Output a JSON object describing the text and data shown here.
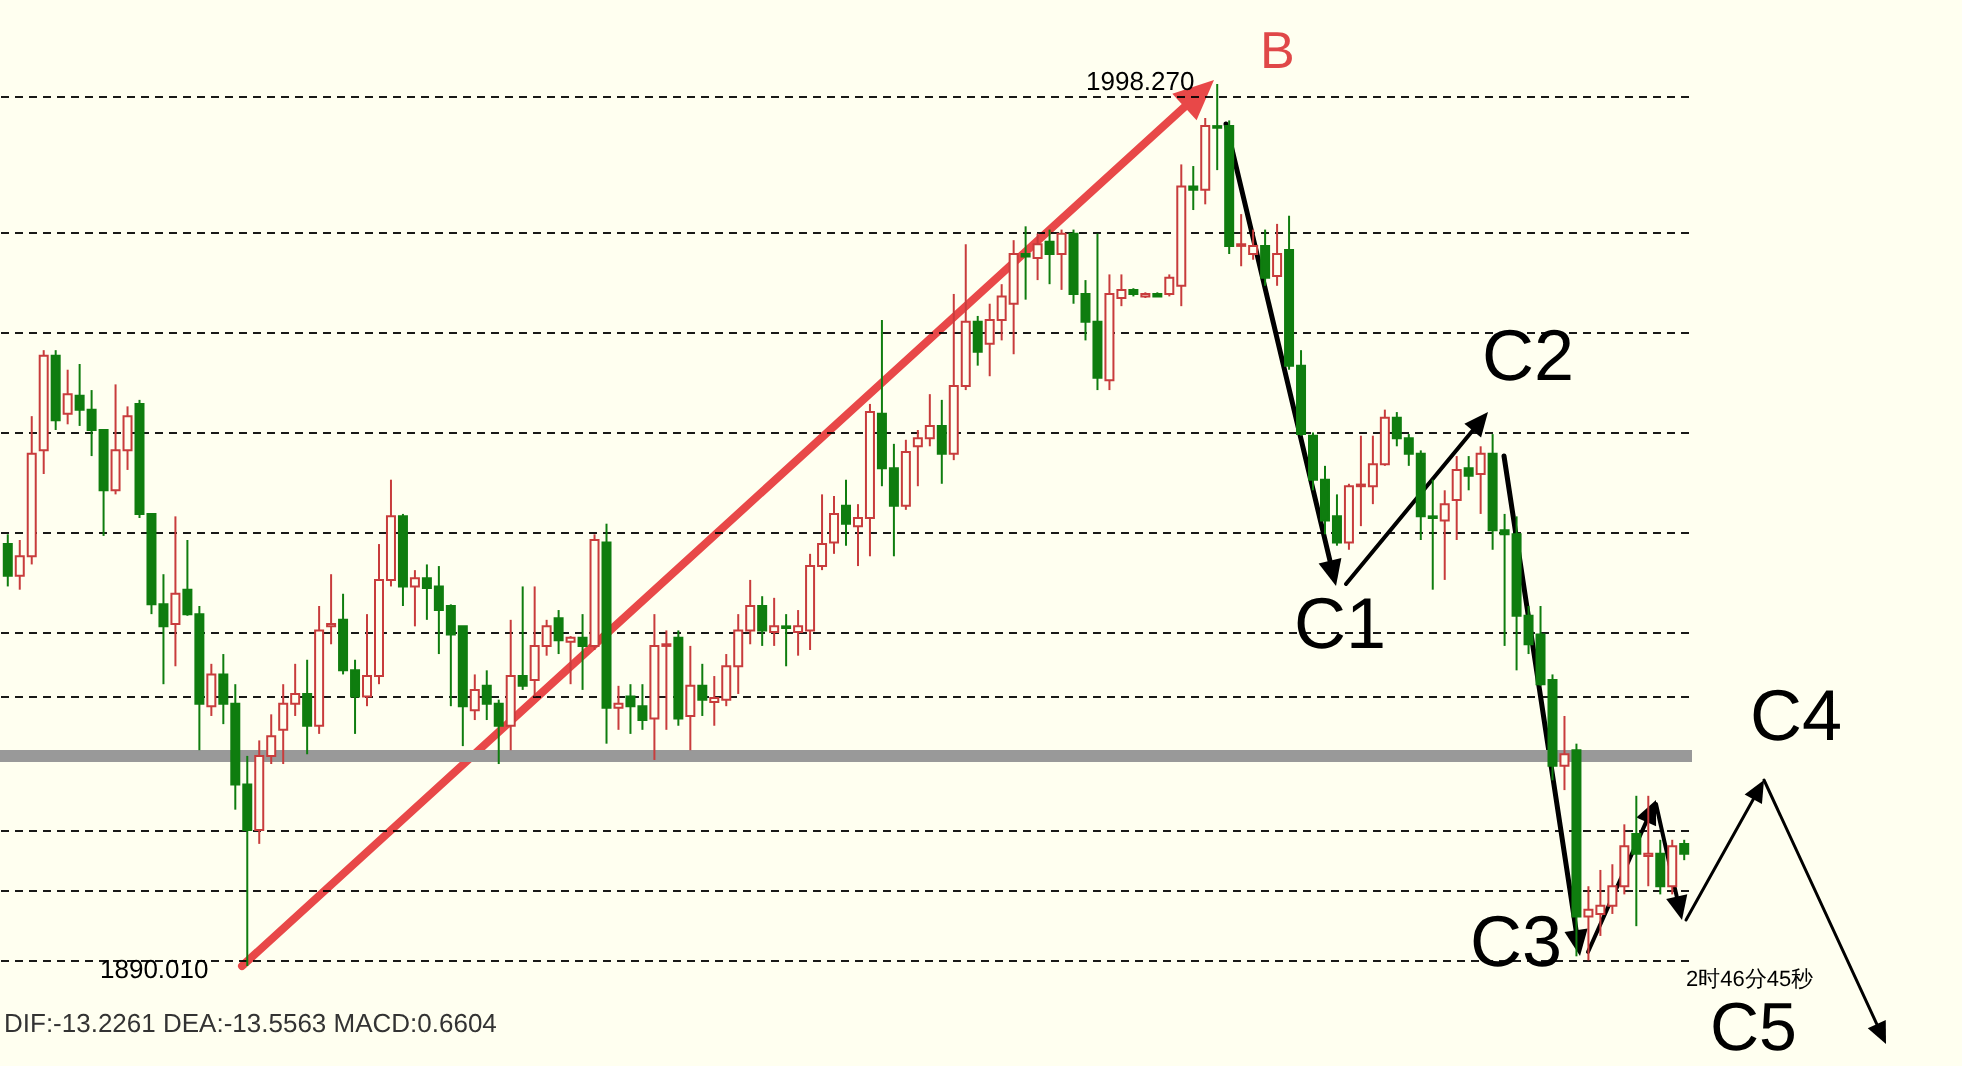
{
  "chart_data": {
    "type": "candlestick",
    "categories": [
      null,
      null,
      null,
      null,
      null,
      null,
      null,
      null,
      null,
      null,
      null,
      null,
      null,
      null,
      null,
      null,
      null,
      null,
      null,
      null,
      null,
      null,
      null,
      null,
      null,
      null,
      null,
      null,
      null,
      null,
      null,
      null,
      null,
      null,
      null,
      null,
      null,
      null,
      null,
      null,
      null,
      null,
      null,
      null,
      null,
      null,
      null,
      null,
      null,
      null,
      null,
      null,
      null,
      null,
      null,
      null,
      null,
      null,
      null,
      null,
      null,
      null,
      null,
      null,
      null,
      null,
      null,
      null,
      null,
      null,
      null,
      null,
      null,
      null,
      null,
      null,
      null,
      null,
      null,
      null,
      null,
      null,
      null,
      null,
      null,
      null,
      null,
      null,
      null,
      null,
      null,
      null,
      null,
      null,
      null,
      null,
      null,
      null,
      null,
      null,
      null,
      null,
      null,
      null,
      null,
      null,
      null,
      null,
      null,
      null,
      null,
      null,
      null,
      null,
      null,
      null,
      null,
      null,
      null,
      null,
      null,
      null,
      null,
      null,
      null,
      null,
      null,
      null,
      null,
      null,
      null,
      null,
      null,
      null,
      null,
      null,
      null,
      null,
      null,
      null,
      null
    ],
    "ohlc": [
      [
        1941.8,
        1943.0,
        1936.6,
        1937.9
      ],
      [
        1937.9,
        1942.3,
        1936.2,
        1940.3
      ],
      [
        1940.3,
        1957.5,
        1939.3,
        1952.9
      ],
      [
        1953.3,
        1965.6,
        1950.4,
        1964.9
      ],
      [
        1964.9,
        1965.6,
        1955.8,
        1957.0
      ],
      [
        1957.8,
        1963.2,
        1956.5,
        1960.2
      ],
      [
        1960.0,
        1963.9,
        1956.3,
        1958.3
      ],
      [
        1958.3,
        1960.7,
        1952.6,
        1955.8
      ],
      [
        1955.8,
        1955.8,
        1942.8,
        1948.4
      ],
      [
        1948.4,
        1961.4,
        1947.9,
        1953.3
      ],
      [
        1953.3,
        1958.7,
        1950.9,
        1957.5
      ],
      [
        1959.0,
        1959.5,
        1945.0,
        1945.5
      ],
      [
        1945.5,
        1945.5,
        1933.2,
        1934.4
      ],
      [
        1934.4,
        1938.1,
        1924.6,
        1931.7
      ],
      [
        1932.0,
        1945.2,
        1926.8,
        1935.7
      ],
      [
        1936.2,
        1942.3,
        1933.0,
        1933.2
      ],
      [
        1933.2,
        1934.2,
        1916.5,
        1922.2
      ],
      [
        1921.9,
        1927.1,
        1920.7,
        1925.8
      ],
      [
        1925.8,
        1928.3,
        1919.7,
        1922.2
      ],
      [
        1922.2,
        1924.6,
        1909.2,
        1912.3
      ],
      [
        1912.3,
        1915.8,
        1890.01,
        1906.7
      ],
      [
        1906.7,
        1917.7,
        1905.0,
        1915.8
      ],
      [
        1915.8,
        1920.9,
        1914.8,
        1918.2
      ],
      [
        1919.0,
        1924.6,
        1914.8,
        1922.2
      ],
      [
        1922.2,
        1927.1,
        1920.7,
        1923.4
      ],
      [
        1923.4,
        1927.6,
        1916.0,
        1919.5
      ],
      [
        1919.5,
        1934.2,
        1918.5,
        1931.2
      ],
      [
        1931.7,
        1938.1,
        1929.5,
        1932.0
      ],
      [
        1932.5,
        1935.7,
        1925.8,
        1926.3
      ],
      [
        1926.3,
        1927.6,
        1918.5,
        1923.1
      ],
      [
        1923.1,
        1933.2,
        1921.9,
        1925.6
      ],
      [
        1925.6,
        1941.8,
        1924.6,
        1937.4
      ],
      [
        1937.4,
        1949.7,
        1936.6,
        1945.2
      ],
      [
        1945.2,
        1945.5,
        1934.2,
        1936.6
      ],
      [
        1936.6,
        1938.6,
        1931.7,
        1937.6
      ],
      [
        1937.6,
        1939.3,
        1932.5,
        1936.4
      ],
      [
        1936.6,
        1939.1,
        1928.3,
        1933.7
      ],
      [
        1934.2,
        1934.4,
        1921.9,
        1930.7
      ],
      [
        1931.7,
        1931.7,
        1917.0,
        1921.9
      ],
      [
        1921.4,
        1925.8,
        1920.2,
        1923.9
      ],
      [
        1924.4,
        1926.3,
        1920.2,
        1922.2
      ],
      [
        1922.2,
        1922.7,
        1914.8,
        1919.5
      ],
      [
        1919.5,
        1932.5,
        1916.5,
        1925.6
      ],
      [
        1925.6,
        1936.6,
        1923.9,
        1924.4
      ],
      [
        1925.1,
        1936.6,
        1923.1,
        1929.3
      ],
      [
        1929.3,
        1932.5,
        1928.1,
        1931.7
      ],
      [
        1932.7,
        1933.7,
        1928.3,
        1930.0
      ],
      [
        1929.8,
        1930.5,
        1924.6,
        1930.3
      ],
      [
        1930.3,
        1933.2,
        1923.9,
        1929.3
      ],
      [
        1929.3,
        1943.0,
        1928.8,
        1942.3
      ],
      [
        1942.0,
        1944.3,
        1917.3,
        1921.7
      ],
      [
        1921.7,
        1924.4,
        1919.0,
        1922.2
      ],
      [
        1923.1,
        1924.6,
        1918.5,
        1921.9
      ],
      [
        1921.9,
        1924.6,
        1919.0,
        1920.2
      ],
      [
        1920.4,
        1933.2,
        1915.3,
        1929.3
      ],
      [
        1929.3,
        1931.2,
        1919.0,
        1929.5
      ],
      [
        1930.3,
        1931.2,
        1919.5,
        1920.4
      ],
      [
        1920.7,
        1929.3,
        1916.5,
        1924.4
      ],
      [
        1924.4,
        1927.1,
        1920.7,
        1922.7
      ],
      [
        1922.4,
        1925.6,
        1919.5,
        1922.9
      ],
      [
        1922.7,
        1928.3,
        1921.9,
        1926.8
      ],
      [
        1926.8,
        1933.2,
        1923.4,
        1931.2
      ],
      [
        1931.2,
        1937.4,
        1929.5,
        1934.2
      ],
      [
        1934.2,
        1935.4,
        1929.3,
        1931.2
      ],
      [
        1931.0,
        1935.2,
        1929.3,
        1931.7
      ],
      [
        1931.7,
        1933.2,
        1926.8,
        1931.5
      ],
      [
        1931.0,
        1933.7,
        1928.1,
        1931.7
      ],
      [
        1931.2,
        1940.6,
        1928.8,
        1939.1
      ],
      [
        1939.1,
        1947.9,
        1938.6,
        1941.8
      ],
      [
        1942.0,
        1947.7,
        1940.6,
        1945.5
      ],
      [
        1946.5,
        1949.7,
        1941.6,
        1944.3
      ],
      [
        1944.0,
        1946.7,
        1939.1,
        1945.0
      ],
      [
        1945.0,
        1959.0,
        1940.3,
        1958.0
      ],
      [
        1957.8,
        1969.3,
        1948.9,
        1951.1
      ],
      [
        1951.1,
        1954.1,
        1940.3,
        1946.5
      ],
      [
        1946.5,
        1954.6,
        1946.0,
        1953.1
      ],
      [
        1953.8,
        1955.8,
        1948.9,
        1954.8
      ],
      [
        1954.8,
        1960.2,
        1953.8,
        1956.3
      ],
      [
        1956.3,
        1959.5,
        1949.2,
        1952.9
      ],
      [
        1952.9,
        1972.5,
        1952.1,
        1961.2
      ],
      [
        1961.2,
        1978.6,
        1960.7,
        1969.1
      ],
      [
        1969.1,
        1969.8,
        1963.7,
        1965.4
      ],
      [
        1966.4,
        1971.3,
        1962.4,
        1969.3
      ],
      [
        1969.3,
        1973.7,
        1966.8,
        1972.2
      ],
      [
        1971.3,
        1979.1,
        1965.1,
        1977.4
      ],
      [
        1977.4,
        1980.8,
        1971.8,
        1977.1
      ],
      [
        1976.9,
        1979.9,
        1974.2,
        1978.6
      ],
      [
        1978.9,
        1980.4,
        1973.7,
        1977.4
      ],
      [
        1977.4,
        1980.4,
        1973.0,
        1979.9
      ],
      [
        1979.9,
        1980.4,
        1971.3,
        1972.5
      ],
      [
        1972.5,
        1974.2,
        1966.8,
        1969.1
      ],
      [
        1969.1,
        1979.9,
        1960.7,
        1962.2
      ],
      [
        1961.9,
        1974.9,
        1960.7,
        1972.5
      ],
      [
        1972.0,
        1974.9,
        1971.0,
        1973.0
      ],
      [
        1973.0,
        1973.2,
        1972.2,
        1972.5
      ],
      [
        1972.2,
        1972.7,
        1972.0,
        1972.5
      ],
      [
        1972.5,
        1972.7,
        1972.2,
        1972.2
      ],
      [
        1972.5,
        1974.9,
        1972.2,
        1974.5
      ],
      [
        1973.5,
        1988.4,
        1971.0,
        1985.7
      ],
      [
        1985.7,
        1988.2,
        1982.8,
        1985.3
      ],
      [
        1985.3,
        1994.1,
        1983.5,
        1993.1
      ],
      [
        1993.1,
        1998.27,
        1987.7,
        1992.9
      ],
      [
        1993.1,
        1993.8,
        1977.4,
        1978.4
      ],
      [
        1978.4,
        1982.3,
        1975.9,
        1978.6
      ],
      [
        1977.4,
        1980.4,
        1976.7,
        1978.4
      ],
      [
        1978.4,
        1980.4,
        1973.5,
        1974.5
      ],
      [
        1974.7,
        1981.1,
        1973.5,
        1977.4
      ],
      [
        1977.9,
        1982.1,
        1963.2,
        1963.7
      ],
      [
        1963.7,
        1965.6,
        1955.1,
        1955.3
      ],
      [
        1955.1,
        1955.5,
        1948.4,
        1949.7
      ],
      [
        1949.7,
        1951.4,
        1943.0,
        1944.7
      ],
      [
        1945.2,
        1947.9,
        1941.6,
        1942.0
      ],
      [
        1942.0,
        1949.2,
        1941.1,
        1948.9
      ],
      [
        1948.9,
        1955.1,
        1944.0,
        1949.1
      ],
      [
        1948.9,
        1955.1,
        1946.7,
        1951.6
      ],
      [
        1951.6,
        1958.3,
        1951.4,
        1957.3
      ],
      [
        1957.3,
        1958.0,
        1953.8,
        1954.8
      ],
      [
        1954.8,
        1955.3,
        1951.4,
        1952.9
      ],
      [
        1952.9,
        1953.3,
        1942.3,
        1945.2
      ],
      [
        1945.2,
        1949.7,
        1936.2,
        1945.0
      ],
      [
        1944.7,
        1948.4,
        1937.4,
        1946.7
      ],
      [
        1947.2,
        1952.6,
        1942.3,
        1950.9
      ],
      [
        1951.1,
        1952.6,
        1948.4,
        1950.2
      ],
      [
        1950.4,
        1953.8,
        1945.5,
        1952.9
      ],
      [
        1952.9,
        1955.3,
        1941.1,
        1943.5
      ],
      [
        1943.5,
        1945.5,
        1929.3,
        1943.0
      ],
      [
        1943.0,
        1945.2,
        1926.3,
        1933.0
      ],
      [
        1933.0,
        1934.2,
        1928.3,
        1929.5
      ],
      [
        1930.7,
        1934.2,
        1924.4,
        1924.6
      ],
      [
        1925.1,
        1925.8,
        1912.8,
        1914.6
      ],
      [
        1914.6,
        1920.7,
        1911.6,
        1916.0
      ],
      [
        1916.5,
        1917.3,
        1891.2,
        1896.1
      ],
      [
        1896.1,
        1899.8,
        1890.7,
        1896.9
      ],
      [
        1896.4,
        1901.8,
        1893.7,
        1897.4
      ],
      [
        1897.4,
        1902.5,
        1896.4,
        1899.8
      ],
      [
        1899.8,
        1907.4,
        1898.8,
        1904.7
      ],
      [
        1906.2,
        1910.9,
        1894.9,
        1903.8
      ],
      [
        1903.5,
        1910.9,
        1899.8,
        1903.8
      ],
      [
        1903.8,
        1905.5,
        1898.8,
        1899.8
      ],
      [
        1899.8,
        1905.5,
        1898.8,
        1904.7
      ],
      [
        1905.0,
        1905.5,
        1903.0,
        1903.8
      ]
    ],
    "yticks": [
      {
        "value": 1996.8,
        "label": null
      },
      {
        "value": 1980.1,
        "label": null
      },
      {
        "value": 1967.8,
        "label": null
      },
      {
        "value": 1955.5,
        "label": null
      },
      {
        "value": 1943.3,
        "label": null
      },
      {
        "value": 1931.0,
        "label": null
      },
      {
        "value": 1923.1,
        "label": null
      },
      {
        "value": 1906.7,
        "label": null
      },
      {
        "value": 1899.3,
        "label": null
      },
      {
        "value": 1890.7,
        "label": null
      }
    ],
    "grid": "y",
    "tick_labels": false,
    "ref_lines": [
      {
        "axis": "y",
        "value": 1915.8,
        "color": "#999999"
      }
    ],
    "annotations": [
      "B",
      "C1",
      "C2",
      "C3",
      "C4",
      "C5",
      "1998.270",
      "1890.010",
      "2时46分45秒",
      "DIF:-13.2261  DEA:-13.5563  MACD:0.6604"
    ]
  }
}
